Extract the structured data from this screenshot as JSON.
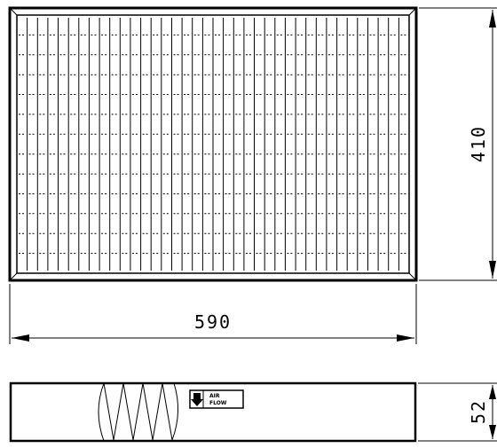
{
  "front_view": {
    "pleat_count": 38,
    "tie_row_count": 12
  },
  "dimensions": {
    "width_label": "590",
    "height_label": "410",
    "depth_label": "52"
  },
  "airflow_badge": {
    "line1": "AIR",
    "line2": "FLOW",
    "icon": "down-arrow-icon"
  },
  "colors": {
    "line": "#000000",
    "background": "#ffffff"
  }
}
